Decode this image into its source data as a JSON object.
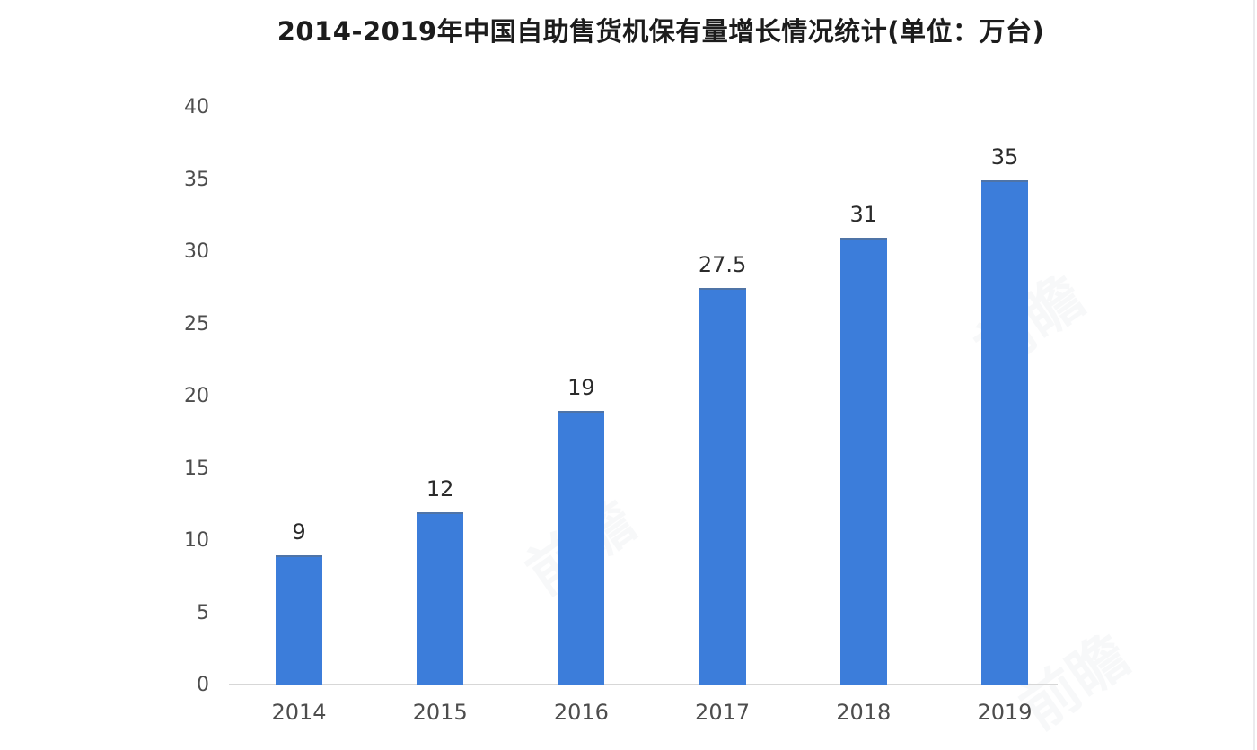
{
  "chart_data": {
    "type": "bar",
    "title": "2014-2019年中国自助售货机保有量增长情况统计(单位：万台)",
    "unit": "万台",
    "categories": [
      "2014",
      "2015",
      "2016",
      "2017",
      "2018",
      "2019"
    ],
    "values": [
      9,
      12,
      19,
      27.5,
      31,
      35
    ],
    "data_labels": [
      "9",
      "12",
      "19",
      "27.5",
      "31",
      "35"
    ],
    "ylim": [
      0,
      40
    ],
    "yticks": [
      0,
      5,
      10,
      15,
      20,
      25,
      30,
      35,
      40
    ],
    "grid": false,
    "legend": "none",
    "colors": {
      "bar": "#3c7dda",
      "axis_line": "#d7d7d7",
      "tick_label": "#4d4d4d",
      "data_label": "#2b2b2b",
      "title": "#1c1c1c"
    }
  },
  "watermark": {
    "text": "前瞻"
  }
}
